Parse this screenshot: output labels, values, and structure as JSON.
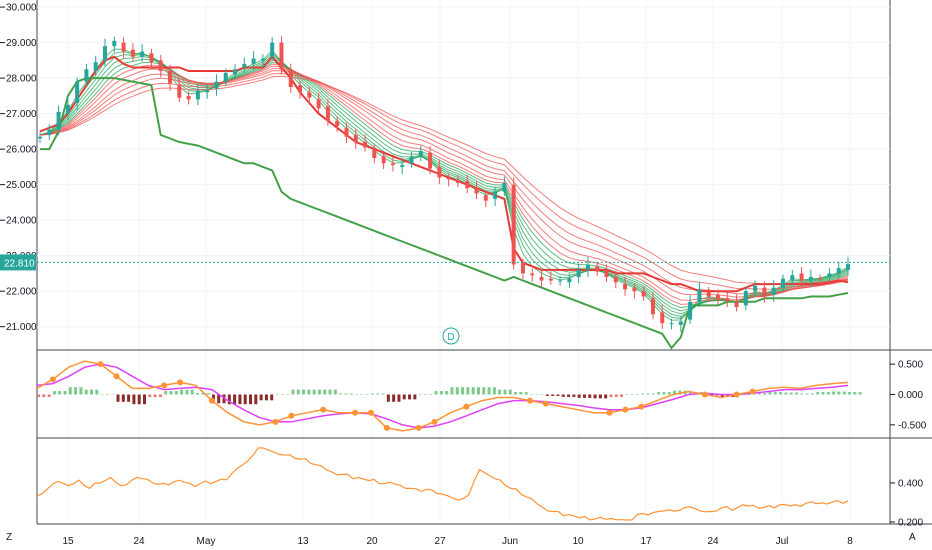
{
  "chart_data": [
    {
      "type": "candlestick",
      "panel": "price",
      "y_ticks": [
        "30.000",
        "29.000",
        "28.000",
        "27.000",
        "26.000",
        "25.000",
        "24.000",
        "23.000",
        "22.000",
        "21.000"
      ],
      "ylim": [
        20.4,
        30.2
      ],
      "last_price_label": "22.810",
      "last_price": 22.81,
      "event_marker": "D",
      "colors": {
        "up": "#26a69a",
        "down": "#ef5350",
        "fast_ma": "#26a657",
        "slow_ma": "#ef5350",
        "highlight": "#2e9c3a"
      },
      "ohlc_path": [
        26.4,
        26.55,
        27.0,
        27.3,
        27.9,
        28.2,
        28.5,
        28.9,
        29.0,
        28.8,
        28.6,
        28.7,
        28.5,
        28.2,
        27.8,
        27.5,
        27.4,
        27.6,
        27.7,
        27.9,
        28.1,
        28.3,
        28.4,
        28.5,
        28.6,
        29.0,
        28.2,
        27.8,
        27.6,
        27.4,
        27.2,
        26.8,
        26.6,
        26.4,
        26.2,
        26.0,
        25.8,
        25.6,
        25.5,
        25.6,
        25.8,
        25.9,
        25.5,
        25.2,
        25.1,
        25.1,
        24.9,
        24.7,
        24.6,
        24.8,
        25.0,
        22.8,
        22.5,
        22.4,
        22.35,
        22.3,
        22.25,
        22.4,
        22.6,
        22.7,
        22.6,
        22.4,
        22.2,
        22.1,
        22.0,
        21.8,
        21.4,
        21.1,
        21.05,
        21.2,
        21.7,
        22.0,
        21.9,
        21.8,
        21.7,
        21.6,
        22.0,
        22.1,
        21.9,
        22.1,
        22.3,
        22.5,
        22.3,
        22.35,
        22.4,
        22.5,
        22.6,
        22.81
      ],
      "green_step": [
        26.0,
        26.0,
        26.5,
        27.5,
        27.9,
        28.0,
        28.0,
        28.0,
        28.0,
        27.95,
        27.9,
        27.85,
        27.8,
        26.4,
        26.3,
        26.2,
        26.15,
        26.1,
        26.0,
        25.9,
        25.8,
        25.7,
        25.6,
        25.6,
        25.5,
        25.4,
        24.8,
        24.6,
        24.5,
        24.4,
        24.3,
        24.2,
        24.1,
        24.0,
        23.9,
        23.8,
        23.7,
        23.6,
        23.5,
        23.4,
        23.3,
        23.2,
        23.1,
        23.0,
        22.9,
        22.8,
        22.7,
        22.6,
        22.5,
        22.4,
        22.3,
        22.4,
        22.3,
        22.2,
        22.1,
        22.0,
        21.9,
        21.8,
        21.7,
        21.6,
        21.5,
        21.4,
        21.3,
        21.2,
        21.1,
        21.0,
        20.9,
        20.8,
        20.4,
        20.7,
        21.6,
        21.6,
        21.6,
        21.6,
        21.7,
        21.7,
        21.7,
        21.7,
        21.8,
        21.8,
        21.8,
        21.8,
        21.8,
        21.85,
        21.85,
        21.85,
        21.9,
        21.95
      ],
      "red_step": [
        26.5,
        26.6,
        26.7,
        27.0,
        27.4,
        27.8,
        28.2,
        28.5,
        28.6,
        28.4,
        28.3,
        28.3,
        28.3,
        28.3,
        28.3,
        28.3,
        28.2,
        28.2,
        28.2,
        28.2,
        28.2,
        28.2,
        28.3,
        28.3,
        28.3,
        28.6,
        28.3,
        28.0,
        27.6,
        27.3,
        27.0,
        26.8,
        26.6,
        26.4,
        26.2,
        26.1,
        26.0,
        25.9,
        25.8,
        25.7,
        25.6,
        25.5,
        25.4,
        25.3,
        25.2,
        25.1,
        25.0,
        24.9,
        24.8,
        24.7,
        24.6,
        23.2,
        22.8,
        22.7,
        22.6,
        22.6,
        22.6,
        22.6,
        22.6,
        22.6,
        22.6,
        22.6,
        22.5,
        22.5,
        22.5,
        22.5,
        22.4,
        22.3,
        22.2,
        22.2,
        22.1,
        22.0,
        22.0,
        22.0,
        22.0,
        22.0,
        22.1,
        22.2,
        22.2,
        22.2,
        22.2,
        22.2,
        22.2,
        22.2,
        22.2,
        22.25,
        22.3,
        22.25
      ]
    },
    {
      "type": "line+histogram",
      "panel": "oscillator",
      "y_ticks": [
        "0.500",
        "0.000",
        "-0.500"
      ],
      "ylim": [
        -0.7,
        0.7
      ],
      "colors": {
        "fast": "#ff9335",
        "slow": "#e040fb",
        "dot": "#ff9335",
        "hist_up": "#7ec98b",
        "hist_down": "#e57373",
        "hist_down_dark": "#8b2b2b",
        "hist_up_dark": "#2e9c3a"
      },
      "fast_values": [
        0.1,
        0.25,
        0.45,
        0.55,
        0.5,
        0.3,
        0.1,
        0.1,
        0.15,
        0.2,
        0.15,
        -0.1,
        -0.3,
        -0.45,
        -0.5,
        -0.45,
        -0.35,
        -0.3,
        -0.25,
        -0.3,
        -0.3,
        -0.3,
        -0.55,
        -0.6,
        -0.55,
        -0.45,
        -0.3,
        -0.2,
        -0.1,
        -0.05,
        -0.05,
        -0.1,
        -0.15,
        -0.2,
        -0.25,
        -0.3,
        -0.3,
        -0.25,
        -0.2,
        -0.1,
        0.0,
        0.05,
        0.0,
        -0.05,
        0.0,
        0.05,
        0.1,
        0.12,
        0.1,
        0.15,
        0.18,
        0.2
      ],
      "slow_values": [
        0.15,
        0.18,
        0.3,
        0.45,
        0.5,
        0.45,
        0.3,
        0.15,
        0.08,
        0.1,
        0.12,
        0.08,
        -0.1,
        -0.25,
        -0.38,
        -0.45,
        -0.45,
        -0.4,
        -0.35,
        -0.32,
        -0.3,
        -0.32,
        -0.4,
        -0.5,
        -0.55,
        -0.52,
        -0.45,
        -0.35,
        -0.25,
        -0.15,
        -0.1,
        -0.1,
        -0.12,
        -0.15,
        -0.18,
        -0.22,
        -0.25,
        -0.25,
        -0.22,
        -0.15,
        -0.08,
        0.0,
        0.02,
        0.0,
        0.0,
        0.02,
        0.05,
        0.08,
        0.08,
        0.1,
        0.12,
        0.15
      ]
    },
    {
      "type": "line",
      "panel": "lower",
      "y_ticks": [
        "0.400",
        "0.200"
      ],
      "ylim": [
        0.2,
        0.62
      ],
      "colors": {
        "line": "#ff9335"
      },
      "values": [
        0.34,
        0.37,
        0.4,
        0.39,
        0.41,
        0.38,
        0.4,
        0.42,
        0.39,
        0.41,
        0.43,
        0.4,
        0.39,
        0.41,
        0.4,
        0.39,
        0.41,
        0.4,
        0.42,
        0.47,
        0.52,
        0.58,
        0.56,
        0.55,
        0.54,
        0.53,
        0.5,
        0.48,
        0.46,
        0.44,
        0.43,
        0.42,
        0.41,
        0.4,
        0.39,
        0.38,
        0.37,
        0.36,
        0.35,
        0.33,
        0.32,
        0.34,
        0.46,
        0.44,
        0.41,
        0.38,
        0.34,
        0.31,
        0.28,
        0.25,
        0.24,
        0.23,
        0.22,
        0.22,
        0.21,
        0.22,
        0.21,
        0.23,
        0.24,
        0.25,
        0.27,
        0.26,
        0.27,
        0.26,
        0.25,
        0.28,
        0.26,
        0.28,
        0.29,
        0.27,
        0.28,
        0.29,
        0.28,
        0.3,
        0.29,
        0.3,
        0.31,
        0.3
      ]
    }
  ],
  "x_axis": {
    "labels": [
      "15",
      "24",
      "May",
      "13",
      "20",
      "27",
      "Jun",
      "10",
      "17",
      "24",
      "Jul",
      "8"
    ]
  },
  "corners": {
    "left": "Z",
    "right": "A"
  }
}
